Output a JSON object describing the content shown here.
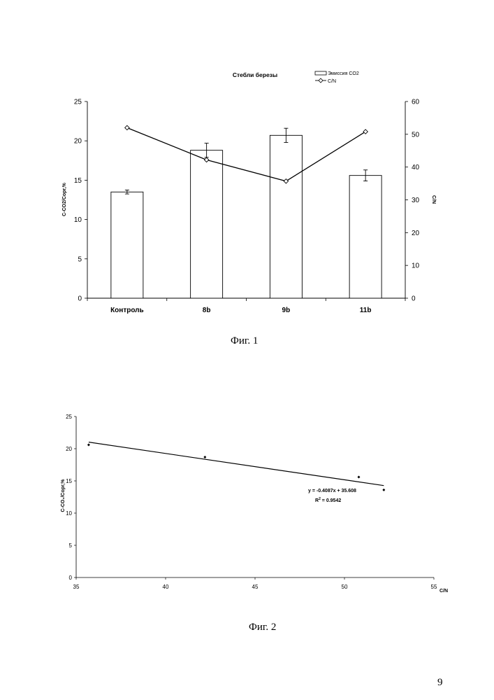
{
  "fig1": {
    "chart_data": {
      "type": "bar",
      "title": "Стебли березы",
      "categories": [
        "Контроль",
        "8b",
        "9b",
        "11b"
      ],
      "series": [
        {
          "name": "Эмиссия CO2",
          "type": "bar",
          "axis": "left",
          "values": [
            13.5,
            18.8,
            20.7,
            15.6
          ],
          "errors": [
            0.25,
            0.9,
            0.9,
            0.7
          ]
        },
        {
          "name": "C/N",
          "type": "line",
          "axis": "right",
          "values": [
            52.0,
            42.2,
            35.7,
            50.8
          ]
        }
      ],
      "ylabel": "C-CO2/Cорг,%",
      "y2label": "C/N",
      "ylim": [
        0,
        25
      ],
      "y2lim": [
        0,
        60
      ],
      "yticks": [
        "0",
        "5",
        "10",
        "15",
        "20",
        "25"
      ],
      "y2ticks": [
        "0",
        "10",
        "20",
        "30",
        "40",
        "50",
        "60"
      ],
      "legend": "top-right",
      "grid": false
    },
    "caption": "Фиг. 1"
  },
  "fig2": {
    "chart_data": {
      "type": "scatter",
      "points": [
        {
          "x": 35.7,
          "y": 20.6
        },
        {
          "x": 42.2,
          "y": 18.7
        },
        {
          "x": 50.8,
          "y": 15.6
        },
        {
          "x": 52.2,
          "y": 13.6
        }
      ],
      "trendline": {
        "slope": -0.4087,
        "intercept": 35.608
      },
      "equation": "y = -0.4087x + 35.608",
      "r2_label": "R",
      "r2_sup": "2",
      "r2_value": " = 0.9542",
      "xlabel": "C/N",
      "ylabel": "C-CO₂/Cорг,%",
      "xlim": [
        35,
        55
      ],
      "ylim": [
        0,
        25
      ],
      "xticks": [
        "35",
        "40",
        "45",
        "50",
        "55"
      ],
      "yticks": [
        "0",
        "5",
        "10",
        "15",
        "20",
        "25"
      ],
      "grid": false
    },
    "caption": "Фиг. 2"
  },
  "page_number": "9"
}
